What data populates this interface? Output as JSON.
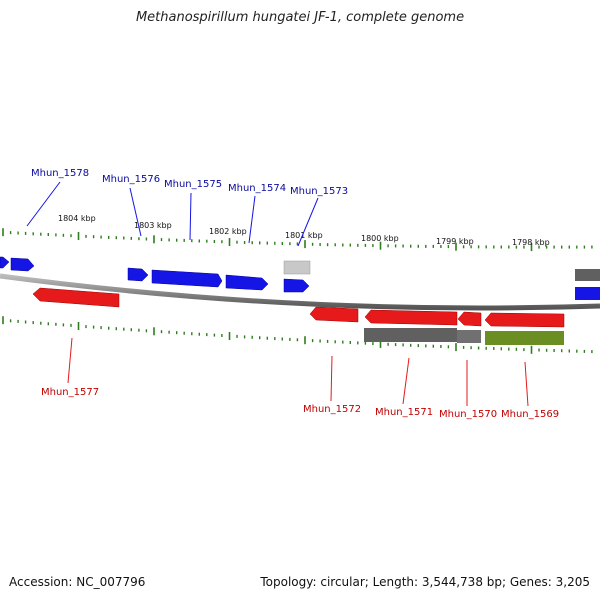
{
  "title": "Methanospirillum hungatei JF-1, complete genome",
  "footer": {
    "accession": "Accession: NC_007796",
    "stats": "Topology: circular; Length: 3,544,738 bp; Genes: 3,205"
  },
  "scale_labels": [
    "1804 kbp",
    "1803 kbp",
    "1802 kbp",
    "1801 kbp",
    "1800 kbp",
    "1799 kbp",
    "1798 kbp"
  ],
  "colors": {
    "forward_gene": "#1515e6",
    "reverse_gene": "#e61a1a",
    "gray_gene": "#606060",
    "light_gray_gene": "#c8c8c8",
    "olive_gene": "#6b8e23",
    "forward_label": "#0a0aa0",
    "reverse_label": "#c00000",
    "tick": "#2e7d1e",
    "backbone": "#888888"
  },
  "genes_top": [
    "Mhun_1578",
    "Mhun_1576",
    "Mhun_1575",
    "Mhun_1574",
    "Mhun_1573"
  ],
  "genes_bottom": [
    "Mhun_1577",
    "Mhun_1572",
    "Mhun_1571",
    "Mhun_1570",
    "Mhun_1569"
  ]
}
